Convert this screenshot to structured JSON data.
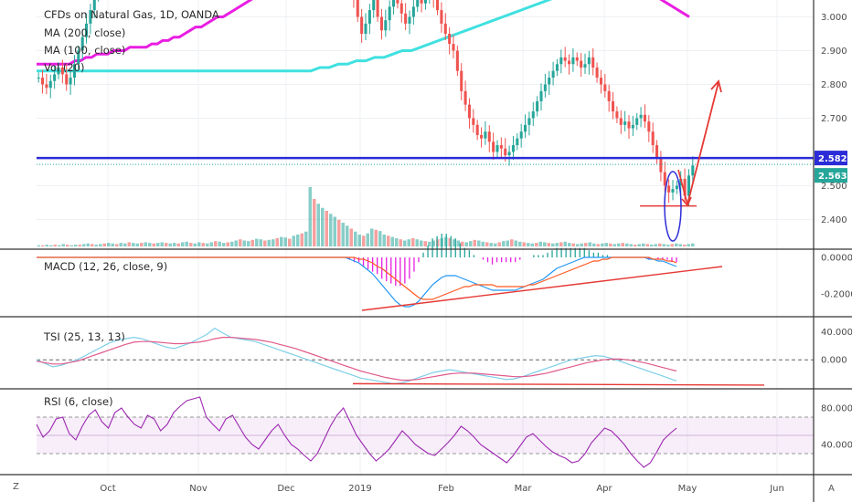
{
  "chart_data": {
    "type": "candlestick",
    "title": "CFDs on Natural Gas, 1D, OANDA",
    "legend": [
      "MA (200, close)",
      "MA (100, close)",
      "Vol (20)"
    ],
    "x_ticks": [
      "Oct",
      "Nov",
      "Dec",
      "2019",
      "Feb",
      "Mar",
      "Apr",
      "May",
      "Jun"
    ],
    "price_axis": {
      "ticks": [
        "3.000",
        "2.900",
        "2.800",
        "2.700",
        "2.582",
        "2.563",
        "2.500",
        "2.400"
      ],
      "range": [
        2.32,
        3.05
      ],
      "resistance_level": 2.582,
      "last_price": 2.563,
      "level_tag": "2.582",
      "last_tag": "2.563",
      "annotation_level": 2.44
    },
    "price_close": [
      2.82,
      2.8,
      2.79,
      2.81,
      2.83,
      2.85,
      2.83,
      2.8,
      2.82,
      2.86,
      2.9,
      2.94,
      2.98,
      3.02,
      3.06,
      3.1,
      3.12,
      3.15,
      3.12,
      3.18,
      3.22,
      3.3,
      3.35,
      3.4,
      3.45,
      3.5,
      3.55,
      3.6,
      3.65,
      3.68,
      3.7,
      3.75,
      3.8,
      3.82,
      3.85,
      3.9,
      3.95,
      4.0,
      4.05,
      4.1,
      4.15,
      4.2,
      4.25,
      4.3,
      4.4,
      4.45,
      4.5,
      4.55,
      4.6,
      4.6,
      4.55,
      4.5,
      4.45,
      4.45,
      4.4,
      4.38,
      4.35,
      4.3,
      4.25,
      4.15,
      4.05,
      3.98,
      3.9,
      3.8,
      3.7,
      3.65,
      3.58,
      3.52,
      3.48,
      3.45,
      3.42,
      3.4,
      3.38,
      3.35,
      3.3,
      3.25,
      3.2,
      3.15,
      3.1,
      3.05,
      3.0,
      2.95,
      2.98,
      3.02,
      3.05,
      3.0,
      2.96,
      2.99,
      3.03,
      3.06,
      3.04,
      3.01,
      2.98,
      3.0,
      3.03,
      3.05,
      3.04,
      3.07,
      3.08,
      3.05,
      3.02,
      2.98,
      2.95,
      2.92,
      2.9,
      2.84,
      2.78,
      2.74,
      2.7,
      2.68,
      2.65,
      2.64,
      2.66,
      2.63,
      2.6,
      2.62,
      2.61,
      2.59,
      2.6,
      2.62,
      2.64,
      2.66,
      2.68,
      2.7,
      2.72,
      2.75,
      2.78,
      2.8,
      2.82,
      2.84,
      2.86,
      2.88,
      2.87,
      2.86,
      2.88,
      2.87,
      2.85,
      2.86,
      2.88,
      2.85,
      2.82,
      2.8,
      2.78,
      2.75,
      2.72,
      2.7,
      2.68,
      2.69,
      2.67,
      2.68,
      2.7,
      2.71,
      2.69,
      2.66,
      2.62,
      2.58,
      2.54,
      2.5,
      2.48,
      2.49,
      2.5,
      2.52,
      2.47,
      2.53,
      2.56
    ],
    "ma200": [
      2.86,
      2.86,
      2.86,
      2.86,
      2.86,
      2.86,
      2.86,
      2.87,
      2.87,
      2.88,
      2.88,
      2.89,
      2.89,
      2.89,
      2.9,
      2.9,
      2.9,
      2.91,
      2.91,
      2.91,
      2.91,
      2.92,
      2.92,
      2.93,
      2.93,
      2.94,
      2.94,
      2.95,
      2.96,
      2.97,
      2.97,
      2.98,
      2.99,
      3.0,
      3.0,
      3.01,
      3.02,
      3.03,
      3.04,
      3.05,
      3.06,
      3.07,
      3.08,
      3.09,
      3.1,
      3.11,
      3.12,
      3.13,
      3.14,
      3.15,
      3.16,
      3.17,
      3.18,
      3.19,
      3.2,
      3.21,
      3.22,
      3.23,
      3.24,
      3.25,
      3.26,
      3.27,
      3.28,
      3.29,
      3.3,
      3.3,
      3.31,
      3.31,
      3.32,
      3.32,
      3.32,
      3.33,
      3.33,
      3.33,
      3.33,
      3.33,
      3.33,
      3.33,
      3.33,
      3.33,
      3.32,
      3.32,
      3.32,
      3.32,
      3.31,
      3.31,
      3.3,
      3.3,
      3.29,
      3.29,
      3.28,
      3.28,
      3.27,
      3.26,
      3.25,
      3.24,
      3.23,
      3.22,
      3.21,
      3.2,
      3.19,
      3.18,
      3.17,
      3.16,
      3.15,
      3.14,
      3.13,
      3.12,
      3.11,
      3.1,
      3.09,
      3.08,
      3.07,
      3.06,
      3.05,
      3.04,
      3.03,
      3.02,
      3.01,
      3.0
    ],
    "ma100": [
      2.84,
      2.84,
      2.84,
      2.84,
      2.84,
      2.84,
      2.84,
      2.84,
      2.84,
      2.84,
      2.84,
      2.84,
      2.84,
      2.84,
      2.84,
      2.84,
      2.84,
      2.84,
      2.84,
      2.84,
      2.84,
      2.84,
      2.84,
      2.84,
      2.84,
      2.84,
      2.84,
      2.84,
      2.84,
      2.84,
      2.84,
      2.85,
      2.85,
      2.86,
      2.86,
      2.87,
      2.87,
      2.88,
      2.88,
      2.89,
      2.9,
      2.9,
      2.91,
      2.92,
      2.93,
      2.94,
      2.95,
      2.96,
      2.97,
      2.98,
      2.99,
      3.0,
      3.01,
      3.02,
      3.03,
      3.04,
      3.05,
      3.06,
      3.07,
      3.08,
      3.09,
      3.1,
      3.11,
      3.12,
      3.13,
      3.14,
      3.15,
      3.16,
      3.17,
      3.18,
      3.19,
      3.2
    ],
    "volume": [
      0.02,
      0.02,
      0.03,
      0.02,
      0.03,
      0.02,
      0.04,
      0.03,
      0.02,
      0.03,
      0.03,
      0.04,
      0.05,
      0.04,
      0.03,
      0.04,
      0.05,
      0.06,
      0.05,
      0.04,
      0.06,
      0.05,
      0.07,
      0.06,
      0.05,
      0.06,
      0.07,
      0.06,
      0.05,
      0.06,
      0.07,
      0.06,
      0.05,
      0.06,
      0.05,
      0.07,
      0.08,
      0.06,
      0.05,
      0.07,
      0.06,
      0.05,
      0.07,
      0.09,
      0.08,
      0.06,
      0.07,
      0.08,
      0.1,
      0.12,
      0.1,
      0.09,
      0.11,
      0.13,
      0.12,
      0.1,
      0.11,
      0.12,
      0.14,
      0.16,
      0.15,
      0.13,
      0.18,
      0.2,
      0.22,
      0.25,
      1.0,
      0.8,
      0.72,
      0.65,
      0.6,
      0.55,
      0.5,
      0.45,
      0.4,
      0.35,
      0.3,
      0.25,
      0.2,
      0.18,
      0.22,
      0.3,
      0.28,
      0.26,
      0.2,
      0.18,
      0.16,
      0.14,
      0.12,
      0.1,
      0.12,
      0.14,
      0.12,
      0.1,
      0.09,
      0.08,
      0.1,
      0.12,
      0.14,
      0.16,
      0.14,
      0.12,
      0.1,
      0.08,
      0.07,
      0.09,
      0.11,
      0.1,
      0.08,
      0.07,
      0.06,
      0.05,
      0.07,
      0.09,
      0.1,
      0.12,
      0.1,
      0.08,
      0.07,
      0.06,
      0.05,
      0.06,
      0.08,
      0.07,
      0.06,
      0.05,
      0.06,
      0.07,
      0.08,
      0.06,
      0.05,
      0.04,
      0.05,
      0.06,
      0.07,
      0.05,
      0.04,
      0.05,
      0.06,
      0.05,
      0.04,
      0.05,
      0.06,
      0.05,
      0.04,
      0.03,
      0.04,
      0.05,
      0.04,
      0.03,
      0.04,
      0.05,
      0.04,
      0.03,
      0.04,
      0.05,
      0.04,
      0.03,
      0.04,
      0.05
    ],
    "macd": {
      "label": "MACD (12, 26, close, 9)",
      "ticks": [
        "0.0000",
        "-0.2000"
      ],
      "range": [
        -0.32,
        0.04
      ],
      "macd_line": [
        0.0,
        0.0,
        0.0,
        0.0,
        0.0,
        0.0,
        0.0,
        0.0,
        0.0,
        0.0,
        0.0,
        0.0,
        0.0,
        0.0,
        0.0,
        0.0,
        0.0,
        0.0,
        0.0,
        0.0,
        0.0,
        0.0,
        0.0,
        0.0,
        0.0,
        0.0,
        0.0,
        0.0,
        0.0,
        0.0,
        0.0,
        0.0,
        0.0,
        0.0,
        0.0,
        0.0,
        0.0,
        0.0,
        0.0,
        0.0,
        0.0,
        0.0,
        0.0,
        0.0,
        0.0,
        0.0,
        0.0,
        0.0,
        0.0,
        0.0,
        0.0,
        0.0,
        0.0,
        0.0,
        0.0,
        0.0,
        0.0,
        0.0,
        0.0,
        0.0,
        0.0,
        0.0,
        0.0,
        0.0,
        0.0,
        0.0,
        0.0,
        0.0,
        -0.01,
        -0.02,
        -0.03,
        -0.05,
        -0.07,
        -0.09,
        -0.12,
        -0.15,
        -0.18,
        -0.21,
        -0.24,
        -0.26,
        -0.27,
        -0.27,
        -0.26,
        -0.24,
        -0.21,
        -0.18,
        -0.15,
        -0.13,
        -0.11,
        -0.1,
        -0.1,
        -0.1,
        -0.11,
        -0.12,
        -0.13,
        -0.14,
        -0.15,
        -0.16,
        -0.17,
        -0.18,
        -0.18,
        -0.18,
        -0.18,
        -0.18,
        -0.18,
        -0.17,
        -0.16,
        -0.15,
        -0.14,
        -0.13,
        -0.12,
        -0.1,
        -0.08,
        -0.06,
        -0.05,
        -0.04,
        -0.03,
        -0.02,
        -0.01,
        0.0,
        0.0,
        0.0,
        0.0,
        0.0,
        0.0,
        0.0,
        0.0,
        0.0,
        0.0,
        0.0,
        0.0,
        0.0,
        0.0,
        -0.01,
        -0.01,
        -0.02,
        -0.02,
        -0.03,
        -0.04,
        -0.05
      ],
      "signal_line": [
        0.0,
        0.0,
        0.0,
        0.0,
        0.0,
        0.0,
        0.0,
        0.0,
        0.0,
        0.0,
        0.0,
        0.0,
        0.0,
        0.0,
        0.0,
        0.0,
        0.0,
        0.0,
        0.0,
        0.0,
        0.0,
        0.0,
        0.0,
        0.0,
        0.0,
        0.0,
        0.0,
        0.0,
        0.0,
        0.0,
        0.0,
        0.0,
        0.0,
        0.0,
        0.0,
        0.0,
        0.0,
        0.0,
        0.0,
        0.0,
        0.0,
        0.0,
        0.0,
        0.0,
        0.0,
        0.0,
        0.0,
        0.0,
        0.0,
        0.0,
        0.0,
        0.0,
        0.0,
        0.0,
        0.0,
        0.0,
        0.0,
        0.0,
        0.0,
        0.0,
        0.0,
        0.0,
        0.0,
        0.0,
        0.0,
        0.0,
        0.0,
        0.0,
        0.0,
        0.0,
        -0.01,
        -0.01,
        -0.02,
        -0.03,
        -0.05,
        -0.06,
        -0.08,
        -0.1,
        -0.12,
        -0.14,
        -0.16,
        -0.18,
        -0.2,
        -0.22,
        -0.23,
        -0.23,
        -0.23,
        -0.22,
        -0.21,
        -0.2,
        -0.19,
        -0.18,
        -0.17,
        -0.16,
        -0.16,
        -0.15,
        -0.15,
        -0.15,
        -0.15,
        -0.15,
        -0.16,
        -0.16,
        -0.16,
        -0.16,
        -0.16,
        -0.16,
        -0.16,
        -0.15,
        -0.15,
        -0.14,
        -0.13,
        -0.12,
        -0.11,
        -0.1,
        -0.09,
        -0.08,
        -0.07,
        -0.06,
        -0.05,
        -0.04,
        -0.03,
        -0.02,
        -0.02,
        -0.01,
        -0.01,
        0.0,
        0.0,
        0.0,
        0.0,
        0.0,
        0.0,
        0.0,
        0.0,
        0.0,
        -0.01,
        -0.01,
        -0.01,
        -0.02,
        -0.02,
        -0.03
      ]
    },
    "tsi": {
      "label": "TSI (25, 13, 13)",
      "ticks": [
        "40.000",
        "0.000"
      ],
      "range": [
        -40,
        60
      ],
      "tsi_line": [
        0,
        -5,
        -10,
        -8,
        -4,
        0,
        6,
        12,
        18,
        24,
        28,
        30,
        32,
        30,
        26,
        22,
        18,
        16,
        20,
        24,
        30,
        36,
        45,
        38,
        32,
        30,
        28,
        26,
        22,
        18,
        14,
        10,
        6,
        2,
        -2,
        -6,
        -10,
        -14,
        -18,
        -22,
        -26,
        -28,
        -30,
        -32,
        -34,
        -33,
        -30,
        -26,
        -22,
        -18,
        -16,
        -14,
        -16,
        -18,
        -20,
        -22,
        -24,
        -26,
        -28,
        -27,
        -24,
        -20,
        -16,
        -12,
        -8,
        -4,
        0,
        2,
        4,
        6,
        5,
        2,
        -2,
        -6,
        -10,
        -14,
        -18,
        -22,
        -26,
        -30
      ],
      "signal_line": [
        -2,
        -4,
        -6,
        -6,
        -4,
        -2,
        2,
        6,
        10,
        14,
        18,
        22,
        25,
        26,
        26,
        25,
        24,
        23,
        23,
        24,
        25,
        27,
        30,
        32,
        32,
        31,
        30,
        29,
        27,
        25,
        22,
        19,
        16,
        12,
        8,
        4,
        0,
        -4,
        -8,
        -12,
        -16,
        -19,
        -22,
        -25,
        -27,
        -29,
        -29,
        -28,
        -26,
        -24,
        -22,
        -20,
        -19,
        -19,
        -19,
        -20,
        -21,
        -22,
        -23,
        -24,
        -24,
        -23,
        -21,
        -19,
        -16,
        -13,
        -10,
        -7,
        -4,
        -2,
        0,
        1,
        1,
        0,
        -2,
        -4,
        -7,
        -10,
        -13,
        -16
      ]
    },
    "rsi": {
      "label": "RSI (6, close)",
      "ticks": [
        "80.0000",
        "40.0000"
      ],
      "range": [
        8,
        100
      ],
      "overbought": 70,
      "oversold": 30,
      "midline": 50,
      "rsi_line": [
        62,
        48,
        55,
        68,
        70,
        52,
        45,
        60,
        72,
        78,
        65,
        58,
        75,
        80,
        70,
        62,
        58,
        72,
        68,
        55,
        62,
        75,
        82,
        88,
        90,
        92,
        70,
        62,
        55,
        68,
        72,
        60,
        48,
        40,
        35,
        45,
        55,
        62,
        50,
        40,
        35,
        28,
        22,
        30,
        45,
        60,
        72,
        80,
        65,
        50,
        40,
        30,
        22,
        28,
        35,
        45,
        55,
        48,
        40,
        35,
        30,
        28,
        35,
        42,
        50,
        60,
        55,
        48,
        40,
        35,
        30,
        25,
        20,
        28,
        38,
        48,
        52,
        45,
        38,
        32,
        28,
        25,
        20,
        22,
        30,
        42,
        50,
        58,
        55,
        48,
        40,
        30,
        22,
        15,
        20,
        32,
        45,
        52,
        58
      ],
      "tags": []
    }
  }
}
